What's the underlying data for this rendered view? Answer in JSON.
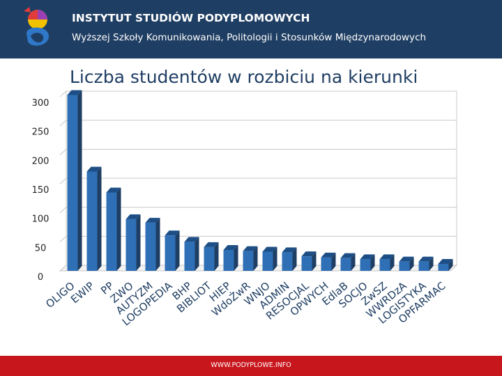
{
  "header": {
    "title": "INSTYTUT STUDIÓW PODYPLOMOWYCH",
    "subtitle": "Wyższej Szkoły Komunikowania, Politologii i Stosunków Międzynarodowych"
  },
  "footer": {
    "text": "WWW.PODYPLOWE.INFO"
  },
  "colors": {
    "header_bg": "#1f3e63",
    "bar_front": "#2f6fb5",
    "footer_bg": "#c8161d"
  },
  "chart_data": {
    "type": "bar",
    "title": "Liczba studentów w rozbiciu na kierunki",
    "xlabel": "",
    "ylabel": "",
    "ylim": [
      0,
      300
    ],
    "yticks": [
      0,
      50,
      100,
      150,
      200,
      250,
      300
    ],
    "grid": true,
    "three_d": true,
    "categories": [
      "OLIGO",
      "EWIP",
      "PP",
      "ZWO",
      "AUTYZM",
      "LOGOPEDIA",
      "BHP",
      "BIBLIOT",
      "HIEP",
      "WdoŻwR",
      "WNJO",
      "ADMIN",
      "RESOCJAL",
      "OPWYCH",
      "EdlaB",
      "SOCJO",
      "ZwSZ",
      "WWRDzA",
      "LOGISTYKA",
      "OPFARMAC"
    ],
    "values": [
      303,
      171,
      135,
      89,
      83,
      61,
      50,
      41,
      36,
      34,
      33,
      32,
      25,
      23,
      22,
      20,
      20,
      16,
      16,
      12
    ]
  }
}
